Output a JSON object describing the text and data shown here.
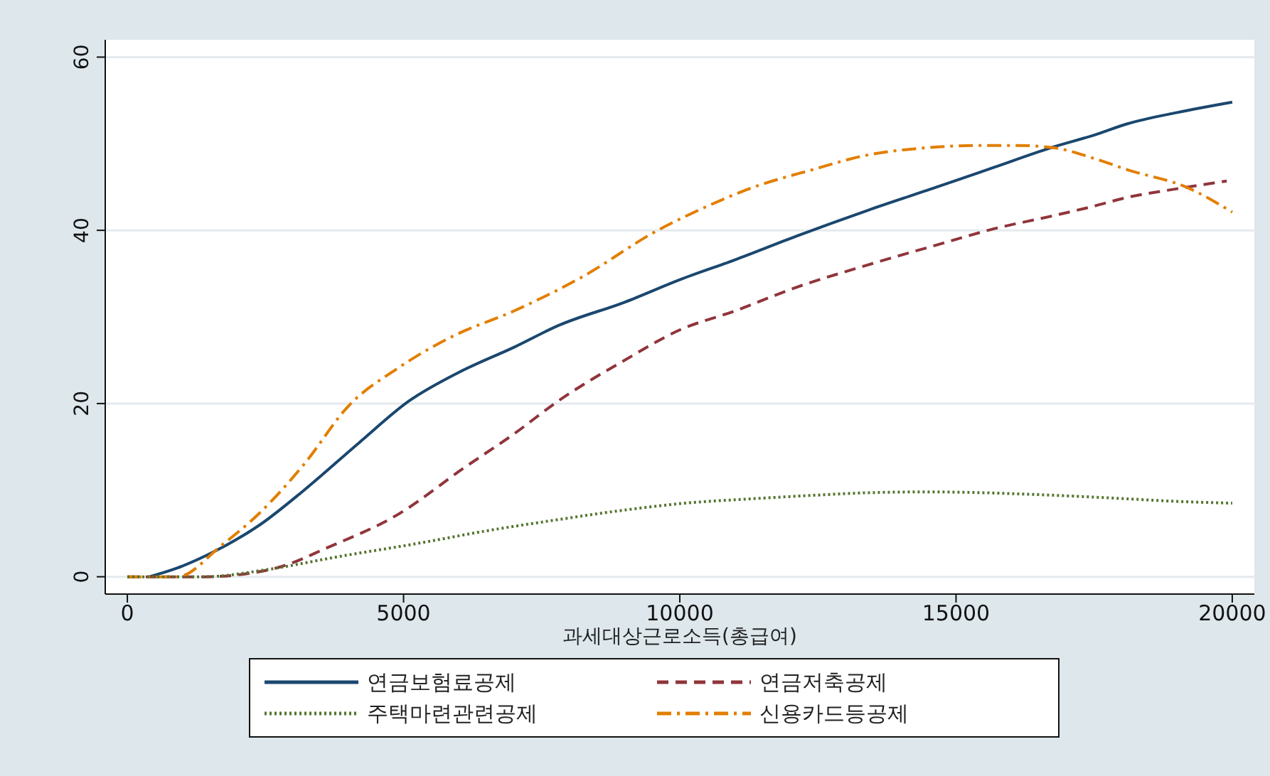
{
  "chart_data": {
    "type": "line",
    "xlabel": "과세대상근로소득(총급여)",
    "xlim": [
      -400,
      20400
    ],
    "xticks": [
      0,
      5000,
      10000,
      15000,
      20000
    ],
    "ylim": [
      -2,
      62
    ],
    "yticks": [
      0,
      20,
      40,
      60
    ],
    "grid": "y",
    "legend": "bottom",
    "series": [
      {
        "name": "연금보험료공제",
        "color": "#1a476f",
        "line_style": "solid",
        "x": [
          400,
          900,
          1600,
          2400,
          3200,
          4200,
          5100,
          6000,
          7000,
          7800,
          9000,
          10000,
          11000,
          12100,
          13400,
          14700,
          15700,
          16700,
          17500,
          18100,
          19000,
          20000
        ],
        "values": [
          0,
          1,
          3,
          6,
          10,
          15.5,
          20.3,
          23.6,
          26.5,
          29,
          31.7,
          34.3,
          36.6,
          39.3,
          42.3,
          45.1,
          47.3,
          49.5,
          51,
          52.3,
          53.6,
          54.8
        ]
      },
      {
        "name": "연금저축공제",
        "color": "#90353b",
        "line_style": "dashed",
        "x": [
          0,
          1400,
          2100,
          2800,
          3600,
          4900,
          6100,
          7000,
          7800,
          9000,
          10000,
          11000,
          12100,
          13400,
          14700,
          15700,
          16700,
          17500,
          18100,
          19000,
          19900
        ],
        "values": [
          0,
          0,
          0.3,
          1.2,
          3.3,
          7.2,
          12.6,
          16.5,
          20.3,
          25,
          28.5,
          30.7,
          33.4,
          36,
          38.4,
          40.2,
          41.6,
          42.8,
          43.8,
          44.8,
          45.7
        ]
      },
      {
        "name": "주택마련관련공제",
        "color": "#55752f",
        "line_style": "dotted",
        "x": [
          0,
          1400,
          2500,
          3800,
          5300,
          6500,
          7800,
          9000,
          10100,
          11300,
          12400,
          13400,
          14500,
          15500,
          16800,
          18100,
          19000,
          20000
        ],
        "values": [
          0,
          0,
          0.8,
          2.3,
          3.9,
          5.3,
          6.6,
          7.7,
          8.5,
          9,
          9.4,
          9.7,
          9.8,
          9.7,
          9.4,
          9,
          8.7,
          8.5
        ]
      },
      {
        "name": "신용카드등공제",
        "color": "#e37e00",
        "line_style": "dashdot",
        "x": [
          0,
          900,
          1700,
          2400,
          3200,
          4000,
          4900,
          5900,
          7000,
          8200,
          9600,
          10400,
          11300,
          12400,
          13400,
          14400,
          15400,
          16100,
          16800,
          17500,
          18100,
          19200,
          20000
        ],
        "values": [
          0,
          0,
          3.6,
          7.4,
          13,
          19.7,
          24.1,
          27.8,
          30.7,
          34.5,
          40,
          42.5,
          44.9,
          47,
          48.7,
          49.5,
          49.8,
          49.8,
          49.5,
          48.3,
          47,
          44.9,
          42.1
        ]
      }
    ]
  }
}
